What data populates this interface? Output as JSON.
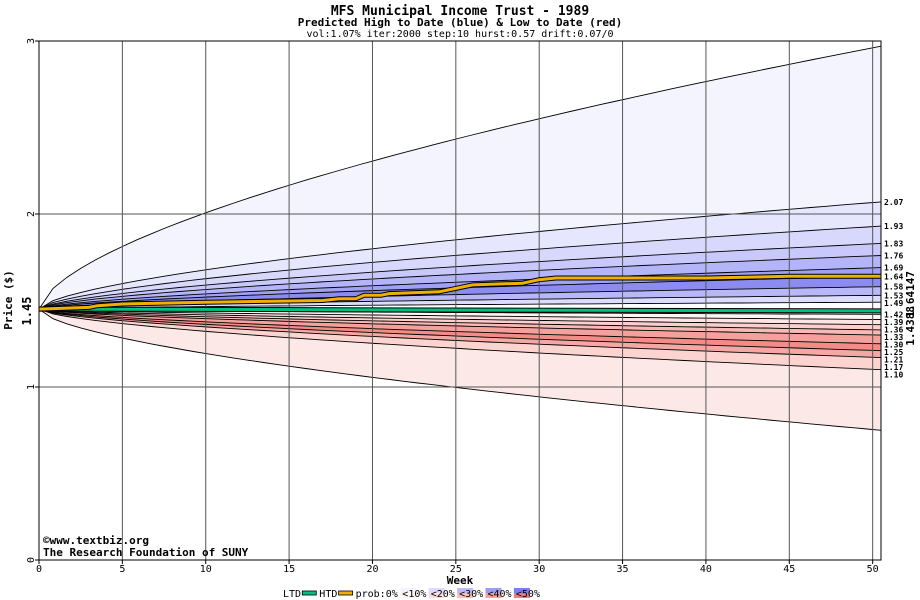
{
  "chart_data": {
    "type": "area",
    "title": "MFS Municipal Income Trust - 1989",
    "subtitle": "Predicted High to Date (blue) &  Low to Date (red)",
    "params": "vol:1.07% iter:2000 step:10 hurst:0.57 drift:0.07/0",
    "xlabel": "Week",
    "ylabel": "Price ($)",
    "xlim": [
      0,
      50.5
    ],
    "ylim": [
      0,
      3
    ],
    "x_ticks": [
      0,
      5,
      10,
      15,
      20,
      25,
      30,
      35,
      40,
      45,
      50
    ],
    "y_ticks": [
      0,
      1,
      2,
      3
    ],
    "grid": true,
    "start_price": 1.45,
    "start_price_label": "1.45",
    "current_values_label": "1.4388",
    "current_values_label2": "1.64147",
    "high_bands": [
      {
        "label": "2.97",
        "end": 2.97,
        "show_label": false
      },
      {
        "label": "2.07",
        "end": 2.07,
        "show_label": true
      },
      {
        "label": "1.93",
        "end": 1.93,
        "show_label": true
      },
      {
        "label": "1.83",
        "end": 1.83,
        "show_label": true
      },
      {
        "label": "1.76",
        "end": 1.76,
        "show_label": true
      },
      {
        "label": "1.69",
        "end": 1.69,
        "show_label": true
      },
      {
        "label": "1.64",
        "end": 1.64,
        "show_label": true
      },
      {
        "label": "1.58",
        "end": 1.58,
        "show_label": true
      },
      {
        "label": "1.53",
        "end": 1.53,
        "show_label": true
      },
      {
        "label": "1.49",
        "end": 1.49,
        "show_label": true
      }
    ],
    "low_bands": [
      {
        "label": "1.42",
        "end": 1.42
      },
      {
        "label": "1.39",
        "end": 1.39
      },
      {
        "label": "1.36",
        "end": 1.36
      },
      {
        "label": "1.33",
        "end": 1.33
      },
      {
        "label": "1.30",
        "end": 1.3
      },
      {
        "label": "1.25",
        "end": 1.25
      },
      {
        "label": "1.21",
        "end": 1.21
      },
      {
        "label": "1.17",
        "end": 1.17
      },
      {
        "label": "1.10",
        "end": 1.1
      },
      {
        "label": "0.75",
        "end": 0.75,
        "show_label": false
      }
    ],
    "htd_series": {
      "name": "HTD",
      "color": "#f0b000",
      "x": [
        0,
        3,
        3.5,
        5,
        10,
        17,
        18,
        19,
        19.5,
        20.5,
        21,
        24,
        25,
        26,
        29,
        30,
        31,
        35,
        40,
        45,
        50.5
      ],
      "y": [
        1.45,
        1.46,
        1.47,
        1.48,
        1.49,
        1.5,
        1.51,
        1.51,
        1.53,
        1.53,
        1.54,
        1.55,
        1.57,
        1.59,
        1.6,
        1.62,
        1.63,
        1.63,
        1.63,
        1.64,
        1.64
      ]
    },
    "ltd_series": {
      "name": "LTD",
      "color": "#00c080",
      "x": [
        0,
        50.5
      ],
      "y": [
        1.45,
        1.44
      ]
    },
    "legend": {
      "items": [
        {
          "label": "LTD",
          "kind": "line",
          "color": "#00c080"
        },
        {
          "label": "HTD",
          "kind": "line",
          "color": "#f0b000"
        },
        {
          "label": "prob:0%",
          "kind": "text"
        },
        {
          "label": "<10%",
          "kind": "swatch",
          "blue": "#f4f4ff",
          "red": "#fff4f4"
        },
        {
          "label": "<20%",
          "kind": "swatch",
          "blue": "#dcdcfc",
          "red": "#fcdcdc"
        },
        {
          "label": "<30%",
          "kind": "swatch",
          "blue": "#bcbcf8",
          "red": "#f8c0bc"
        },
        {
          "label": "<40%",
          "kind": "swatch",
          "blue": "#9c9cf4",
          "red": "#f4a09c"
        },
        {
          "label": "<50%",
          "kind": "swatch",
          "blue": "#7c7cf0",
          "red": "#f07c78"
        }
      ]
    },
    "credit_1": "©www.textbiz.org",
    "credit_2": "The Research Foundation of SUNY"
  },
  "colors": {
    "high_bands": [
      "#f4f4ff",
      "#e6e6fe",
      "#d8d8fc",
      "#c8c8fa",
      "#b4b4f8",
      "#a0a0f4",
      "#8c8cf0",
      "#b8b8f8",
      "#dcdcfc"
    ],
    "low_bands": [
      "#fff4f4",
      "#fde4e4",
      "#fbd0cc",
      "#f8b8b4",
      "#f4a09c",
      "#f28c86",
      "#f4a8a4",
      "#fbd4d0",
      "#fde8e8"
    ],
    "grid": "#555555",
    "start_label": "#006600",
    "end_label_1": "#008060",
    "end_label_2": "#a07800"
  }
}
